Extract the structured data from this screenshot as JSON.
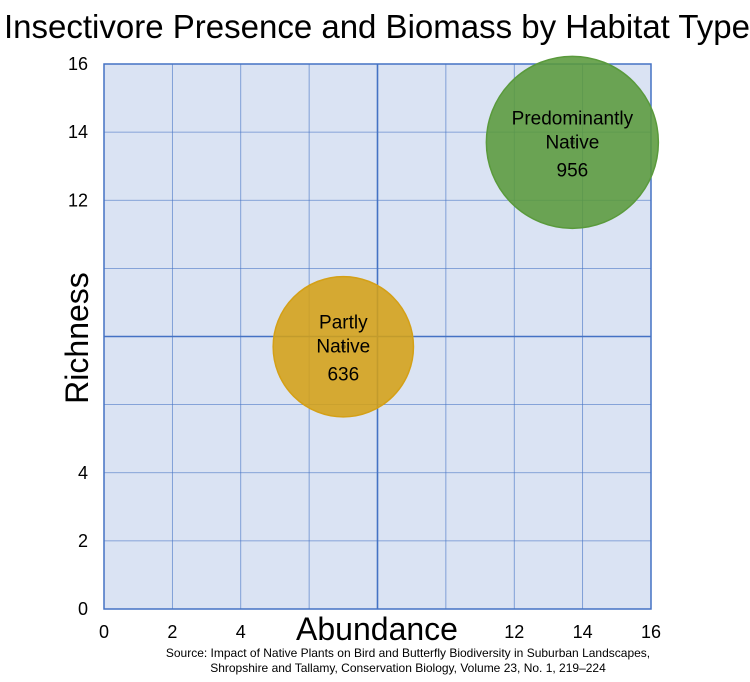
{
  "chart_data": {
    "type": "bubble",
    "title": "Insectivore Presence and Biomass by Habitat Type",
    "xlabel": "Abundance",
    "ylabel": "Richness",
    "xlim": [
      0,
      16
    ],
    "ylim": [
      0,
      16
    ],
    "x_ticks": [
      "0",
      "2",
      "4",
      "",
      "",
      "",
      "12",
      "14",
      "16"
    ],
    "y_ticks": [
      "0",
      "2",
      "4",
      "",
      "",
      "",
      "12",
      "14",
      "16"
    ],
    "grid": true,
    "plot_background": "#dae3f3",
    "grid_color": "#4472c4",
    "points": [
      {
        "label_line1": "Partly",
        "label_line2": "Native",
        "value_label": "636",
        "x": 7,
        "y": 7.7,
        "size": 636,
        "color": "#d4a017"
      },
      {
        "label_line1": "Predominantly",
        "label_line2": "Native",
        "value_label": "956",
        "x": 13.7,
        "y": 13.7,
        "size": 956,
        "color": "#5a9a3c"
      }
    ],
    "source_line1": "Source: Impact of Native Plants on Bird and Butterfly Biodiversity in Suburban Landscapes,",
    "source_line2": "Shropshire and Tallamy, Conservation Biology, Volume 23, No. 1, 219–224"
  }
}
